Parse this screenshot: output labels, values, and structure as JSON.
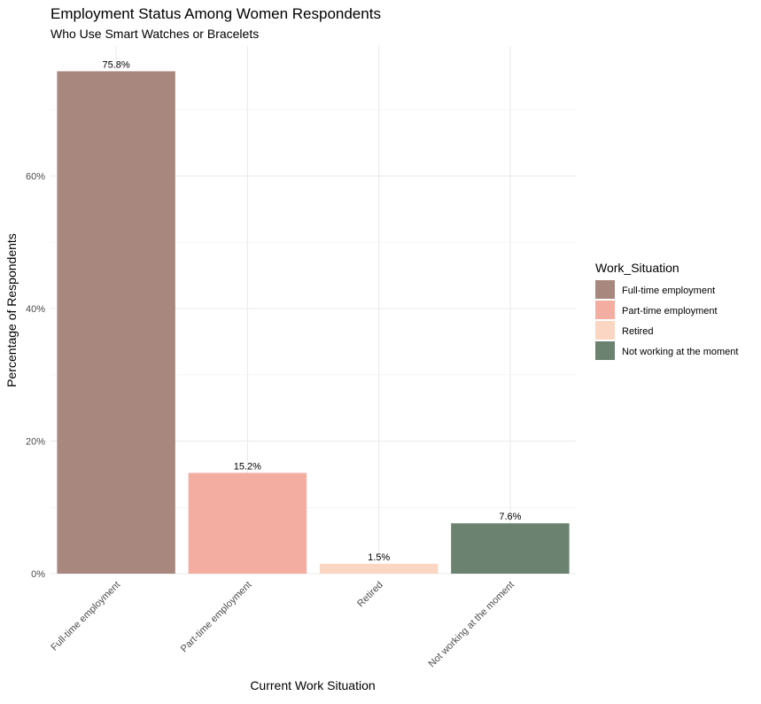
{
  "chart_data": {
    "type": "bar",
    "title": "Employment Status Among Women Respondents",
    "subtitle": "Who Use Smart Watches or Bracelets",
    "xlabel": "Current Work Situation",
    "ylabel": "Percentage of Respondents",
    "categories": [
      "Full-time employment",
      "Part-time employment",
      "Retired",
      "Not working at the moment"
    ],
    "values": [
      75.8,
      15.2,
      1.5,
      7.6
    ],
    "value_labels": [
      "75.8%",
      "15.2%",
      "1.5%",
      "7.6%"
    ],
    "y_ticks": [
      0,
      20,
      40,
      60
    ],
    "y_tick_labels": [
      "0%",
      "20%",
      "40%",
      "60%"
    ],
    "ylim": [
      0,
      79.6
    ],
    "grid": true,
    "legend": {
      "title": "Work_Situation",
      "position": "right",
      "items": [
        "Full-time employment",
        "Part-time employment",
        "Retired",
        "Not working at the moment"
      ]
    },
    "colors": [
      "#a8877f",
      "#f4ada1",
      "#fbd6c3",
      "#6b8270"
    ]
  }
}
